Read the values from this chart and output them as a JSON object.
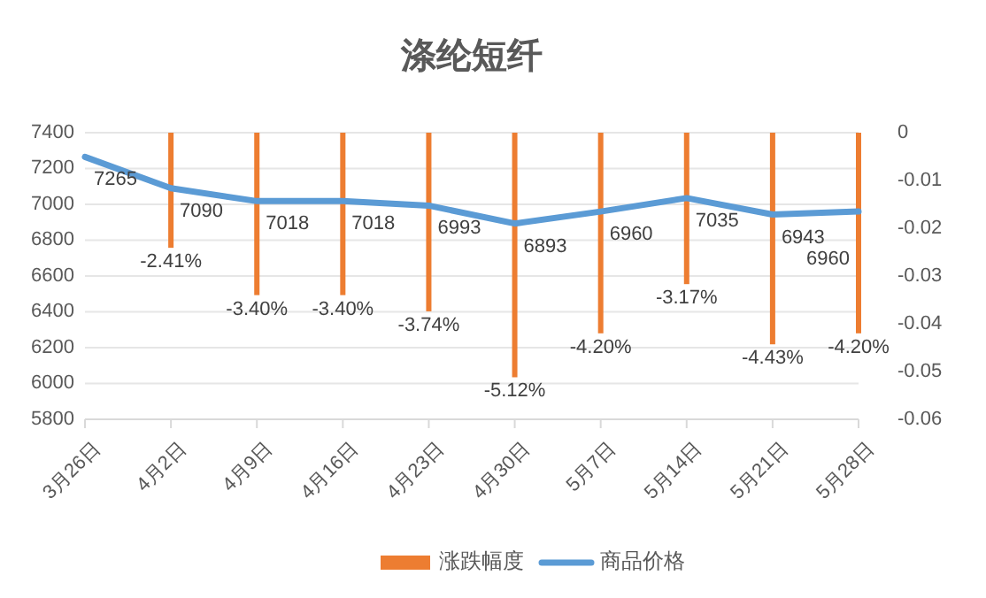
{
  "chart_data": {
    "type": "bar",
    "title": "涤纶短纤",
    "categories": [
      "3月26日",
      "4月2日",
      "4月9日",
      "4月16日",
      "4月23日",
      "4月30日",
      "5月7日",
      "5月14日",
      "5月21日",
      "5月28日"
    ],
    "series": [
      {
        "name": "涨跌幅度",
        "axis": "y2",
        "color": "#ed7d31",
        "values": [
          null,
          -0.0241,
          -0.034,
          -0.034,
          -0.0374,
          -0.0512,
          -0.042,
          -0.0317,
          -0.0443,
          -0.042
        ],
        "value_labels": [
          null,
          "-2.41%",
          "-3.40%",
          "-3.40%",
          "-3.74%",
          "-5.12%",
          "-4.20%",
          "-3.17%",
          "-4.43%",
          "-4.20%"
        ]
      },
      {
        "name": "商品价格",
        "type": "line",
        "color": "#5b9bd5",
        "values": [
          7265,
          7090,
          7018,
          7018,
          6993,
          6893,
          6960,
          7035,
          6943,
          6960
        ],
        "value_labels": [
          "7265",
          "7090",
          "7018",
          "7018",
          "6993",
          "6893",
          "6960",
          "7035",
          "6943",
          "6960"
        ]
      }
    ],
    "ylim": [
      5800,
      7400
    ],
    "yticks": [
      5800,
      6000,
      6200,
      6400,
      6600,
      6800,
      7000,
      7200,
      7400
    ],
    "y2lim": [
      -0.06,
      0
    ],
    "y2ticks": [
      -0.06,
      -0.05,
      -0.04,
      -0.03,
      -0.02,
      -0.01,
      0
    ],
    "grid": "y",
    "legend": "bottom",
    "marker": "none"
  }
}
